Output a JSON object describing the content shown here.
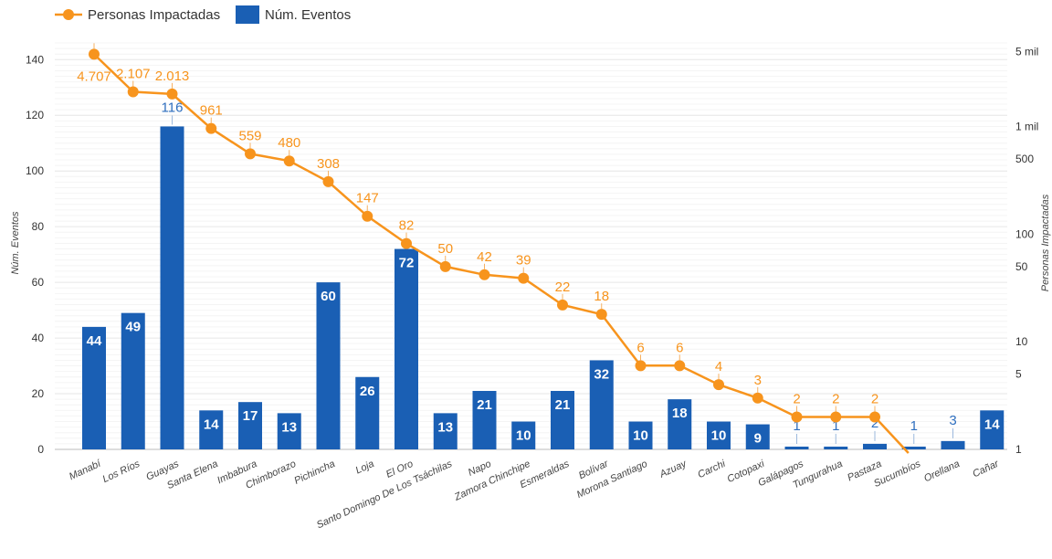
{
  "chart_data": {
    "type": "bar",
    "categories": [
      "Manabí",
      "Los Ríos",
      "Guayas",
      "Santa Elena",
      "Imbabura",
      "Chimborazo",
      "Pichincha",
      "Loja",
      "El Oro",
      "Santo Domingo De Los Tsáchilas",
      "Napo",
      "Zamora Chinchipe",
      "Esmeraldas",
      "Bolívar",
      "Morona Santiago",
      "Azuay",
      "Carchi",
      "Cotopaxi",
      "Galápagos",
      "Tungurahua",
      "Pastaza",
      "Sucumbíos",
      "Orellana",
      "Cañar"
    ],
    "series": [
      {
        "name": "Núm. Eventos",
        "type": "bar",
        "axis": "left",
        "color": "#1a5fb4",
        "values": [
          44,
          49,
          116,
          14,
          17,
          13,
          60,
          26,
          72,
          13,
          21,
          10,
          21,
          32,
          10,
          18,
          10,
          9,
          1,
          1,
          2,
          1,
          3,
          14
        ],
        "labels": [
          "44",
          "49",
          "116",
          "14",
          "17",
          "13",
          "60",
          "26",
          "72",
          "13",
          "21",
          "10",
          "21",
          "32",
          "10",
          "18",
          "10",
          "9",
          "1",
          "1",
          "2",
          "1",
          "3",
          "14"
        ]
      },
      {
        "name": "Personas Impactadas",
        "type": "line",
        "axis": "right",
        "scale": "log",
        "color": "#f7941d",
        "values": [
          4707,
          2107,
          2013,
          961,
          559,
          480,
          308,
          147,
          82,
          50,
          42,
          39,
          22,
          18,
          6,
          6,
          4,
          3,
          2,
          2,
          2,
          null,
          null,
          null
        ],
        "labels": [
          "4.707",
          "2.107",
          "2.013",
          "961",
          "559",
          "480",
          "308",
          "147",
          "82",
          "50",
          "42",
          "39",
          "22",
          "18",
          "6",
          "6",
          "4",
          "3",
          "2",
          "2",
          "2",
          "",
          "",
          ""
        ]
      }
    ],
    "ylabel": "Núm. Eventos",
    "y2label": "Personas Impactadas",
    "ylim": [
      0,
      146
    ],
    "yticks": [
      0,
      20,
      40,
      60,
      80,
      100,
      120,
      140
    ],
    "ytick_labels": [
      "0",
      "20",
      "40",
      "60",
      "80",
      "100",
      "120",
      "140"
    ],
    "y2lim": [
      1,
      6000
    ],
    "y2scale": "log",
    "y2ticks": [
      1,
      5,
      10,
      50,
      100,
      500,
      1000,
      5000
    ],
    "y2tick_labels": [
      "1",
      "5",
      "10",
      "50",
      "100",
      "500",
      "1 mil",
      "5 mil"
    ],
    "grid": true,
    "legend_position": "top-left"
  }
}
